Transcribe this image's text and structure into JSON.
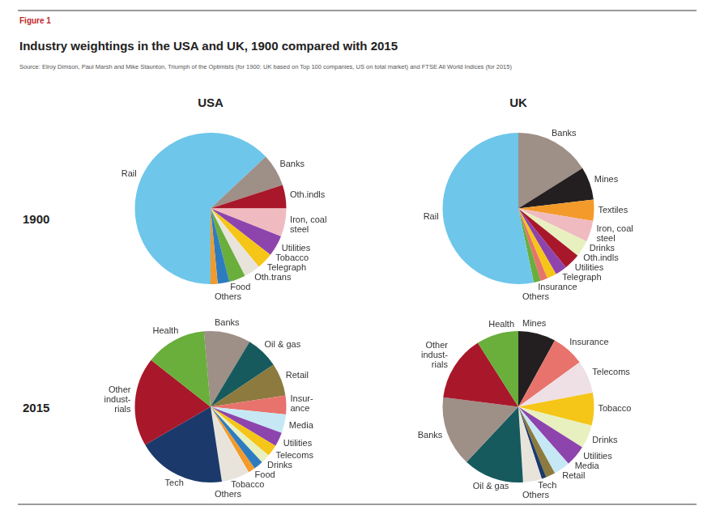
{
  "header": {
    "figure_label": "Figure 1",
    "title": "Industry weightings in the USA and UK, 1900 compared with 2015",
    "source": "Source: Elroy Dimson, Paul Marsh and Mike Staunton, Triumph of the Optimists (for 1900: UK based on Top 100 companies, US on total market) and FTSE All World Indices (for 2015)"
  },
  "columns": [
    "USA",
    "UK"
  ],
  "rows": [
    "1900",
    "2015"
  ],
  "chart_data": [
    {
      "type": "pie",
      "categories": [
        "Rail",
        "Banks",
        "Oth.indls",
        "Iron, coal\nsteel",
        "Utilities",
        "Tobacco",
        "Telegraph",
        "Oth.trans",
        "Food",
        "Others"
      ],
      "values": [
        63,
        7,
        5,
        6,
        4.5,
        3.5,
        3.5,
        3.5,
        2.5,
        1.5
      ],
      "colors": [
        "#6ec6ea",
        "#9e8f87",
        "#a8182a",
        "#f0bbc0",
        "#8e44ad",
        "#f5c518",
        "#e8e4dc",
        "#6aae3c",
        "#2e7cc0",
        "#f39a2a"
      ]
    },
    {
      "type": "pie",
      "categories": [
        "Banks",
        "Mines",
        "Textiles",
        "Iron, coal\nsteel",
        "Drinks",
        "Oth.indls",
        "Utilities",
        "Telegraph",
        "Insurance",
        "Others",
        "Rail"
      ],
      "values": [
        16,
        7,
        4.5,
        4.5,
        3.5,
        3.5,
        2.5,
        2,
        1.5,
        1.5,
        53
      ],
      "colors": [
        "#9e8f87",
        "#231f20",
        "#f39a2a",
        "#f0bbc0",
        "#e8f0c0",
        "#a8182a",
        "#8e44ad",
        "#f5c518",
        "#e8736c",
        "#6aae3c",
        "#6ec6ea"
      ]
    },
    {
      "type": "pie",
      "categories": [
        "Banks",
        "Oil & gas",
        "Retail",
        "Insur-\nance",
        "Media",
        "Utilities",
        "Telecoms",
        "Drinks",
        "Food",
        "Tobacco",
        "Others",
        "Tech",
        "Other\nindust-\nrials",
        "Health"
      ],
      "values": [
        10,
        7,
        7,
        4,
        4,
        3,
        2.5,
        2,
        2,
        1.5,
        6,
        19,
        19,
        13
      ],
      "colors": [
        "#9e8f87",
        "#165a5e",
        "#8c7a3e",
        "#e8736c",
        "#c6e8f5",
        "#8e44ad",
        "#f5c518",
        "#e8f0c0",
        "#2e7cc0",
        "#f39a2a",
        "#e8e4dc",
        "#1b3a6b",
        "#a8182a",
        "#6aae3c"
      ]
    },
    {
      "type": "pie",
      "categories": [
        "Mines",
        "Insurance",
        "Telecoms",
        "Tobacco",
        "Drinks",
        "Utilities",
        "Media",
        "Retail",
        "Tech",
        "Others",
        "Oil & gas",
        "Banks",
        "Other\nindust-\nrials",
        "Health"
      ],
      "values": [
        8,
        7,
        7,
        7,
        5,
        4.5,
        3.5,
        2,
        1,
        4,
        13,
        15,
        14,
        9
      ],
      "colors": [
        "#231f20",
        "#e8736c",
        "#eee0e4",
        "#f5c518",
        "#e8f0c0",
        "#8e44ad",
        "#c6e8f5",
        "#8c7a3e",
        "#1b3a6b",
        "#e8e4dc",
        "#165a5e",
        "#9e8f87",
        "#a8182a",
        "#6aae3c"
      ]
    }
  ]
}
